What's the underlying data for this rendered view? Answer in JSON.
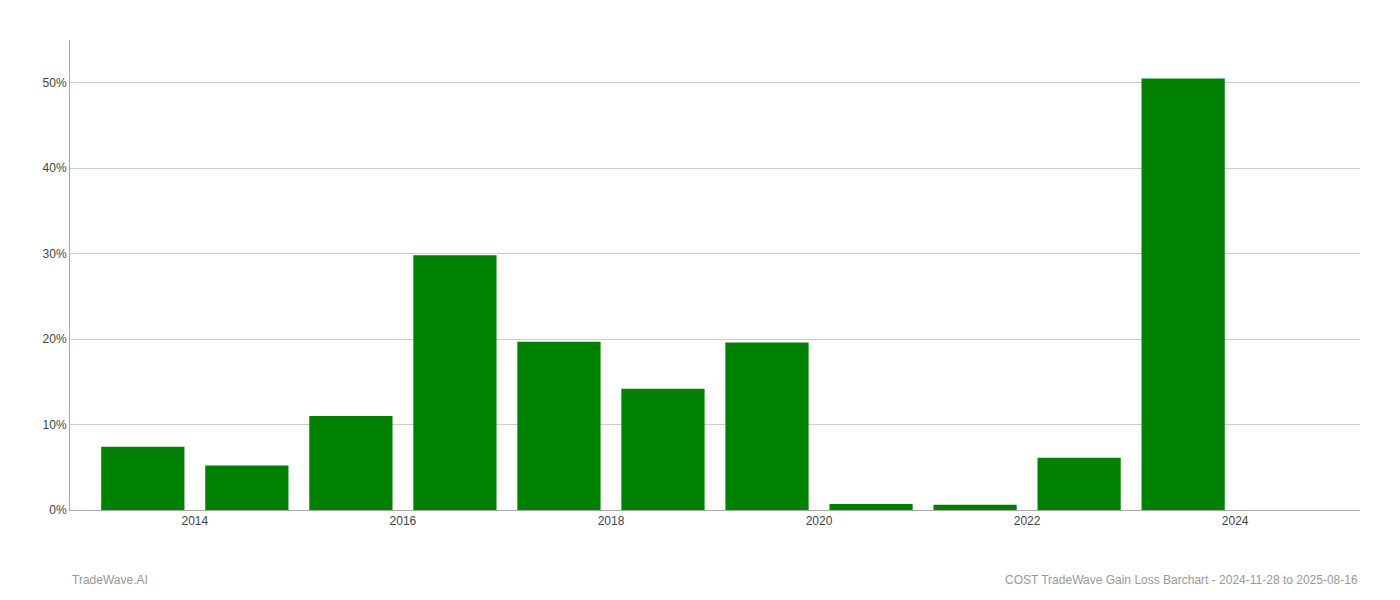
{
  "chart_data": {
    "type": "bar",
    "x": [
      2013.5,
      2014.5,
      2015.5,
      2016.5,
      2017.5,
      2018.5,
      2019.5,
      2020.5,
      2021.5,
      2022.5,
      2023.5
    ],
    "values": [
      0.074,
      0.052,
      0.11,
      0.298,
      0.197,
      0.142,
      0.196,
      0.007,
      0.006,
      0.061,
      0.505
    ],
    "color": "#008000",
    "xlim": [
      2012.8,
      2025.2
    ],
    "xticks": [
      2014,
      2016,
      2018,
      2020,
      2022,
      2024
    ],
    "ylim": [
      0,
      0.55
    ],
    "yticks": [
      {
        "value": 0,
        "label": "0%"
      },
      {
        "value": 0.1,
        "label": "10%"
      },
      {
        "value": 0.2,
        "label": "20%"
      },
      {
        "value": 0.3,
        "label": "30%"
      },
      {
        "value": 0.4,
        "label": "40%"
      },
      {
        "value": 0.5,
        "label": "50%"
      }
    ],
    "grid": true,
    "annotations": [
      "TradeWave.AI",
      "COST TradeWave Gain Loss Barchart - 2024-11-28 to 2025-08-16"
    ]
  }
}
